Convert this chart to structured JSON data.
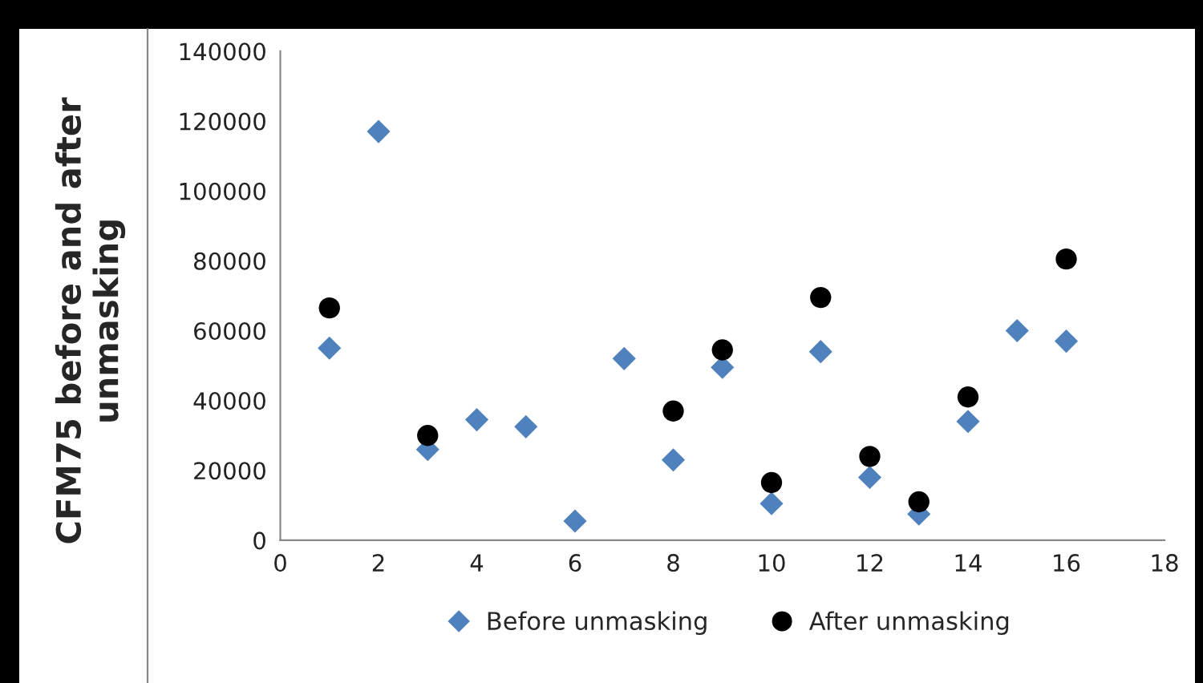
{
  "chart_data": {
    "type": "scatter",
    "ylabel": "CFM75 before and after unmasking",
    "xlim": [
      0,
      18
    ],
    "xticks": [
      0,
      2,
      4,
      6,
      8,
      10,
      12,
      14,
      16,
      18
    ],
    "ylim": [
      0,
      140000
    ],
    "yticks": [
      0,
      20000,
      40000,
      60000,
      80000,
      100000,
      120000,
      140000
    ],
    "grid": false,
    "legend": "bottom",
    "series": [
      {
        "name": "Before unmasking",
        "color": "#4f81bd",
        "marker": "diamond",
        "x": [
          1,
          2,
          3,
          4,
          5,
          6,
          7,
          8,
          9,
          10,
          11,
          12,
          13,
          14,
          15,
          16
        ],
        "values": [
          55000,
          117000,
          26000,
          34500,
          32500,
          5500,
          52000,
          23000,
          49500,
          10500,
          54000,
          18000,
          7500,
          34000,
          60000,
          57000
        ]
      },
      {
        "name": "After unmasking",
        "color": "#000000",
        "marker": "circle",
        "x": [
          1,
          3,
          8,
          9,
          10,
          11,
          12,
          13,
          14,
          16
        ],
        "values": [
          66500,
          30000,
          37000,
          54500,
          16500,
          69500,
          24000,
          11000,
          41000,
          80500
        ]
      }
    ]
  }
}
